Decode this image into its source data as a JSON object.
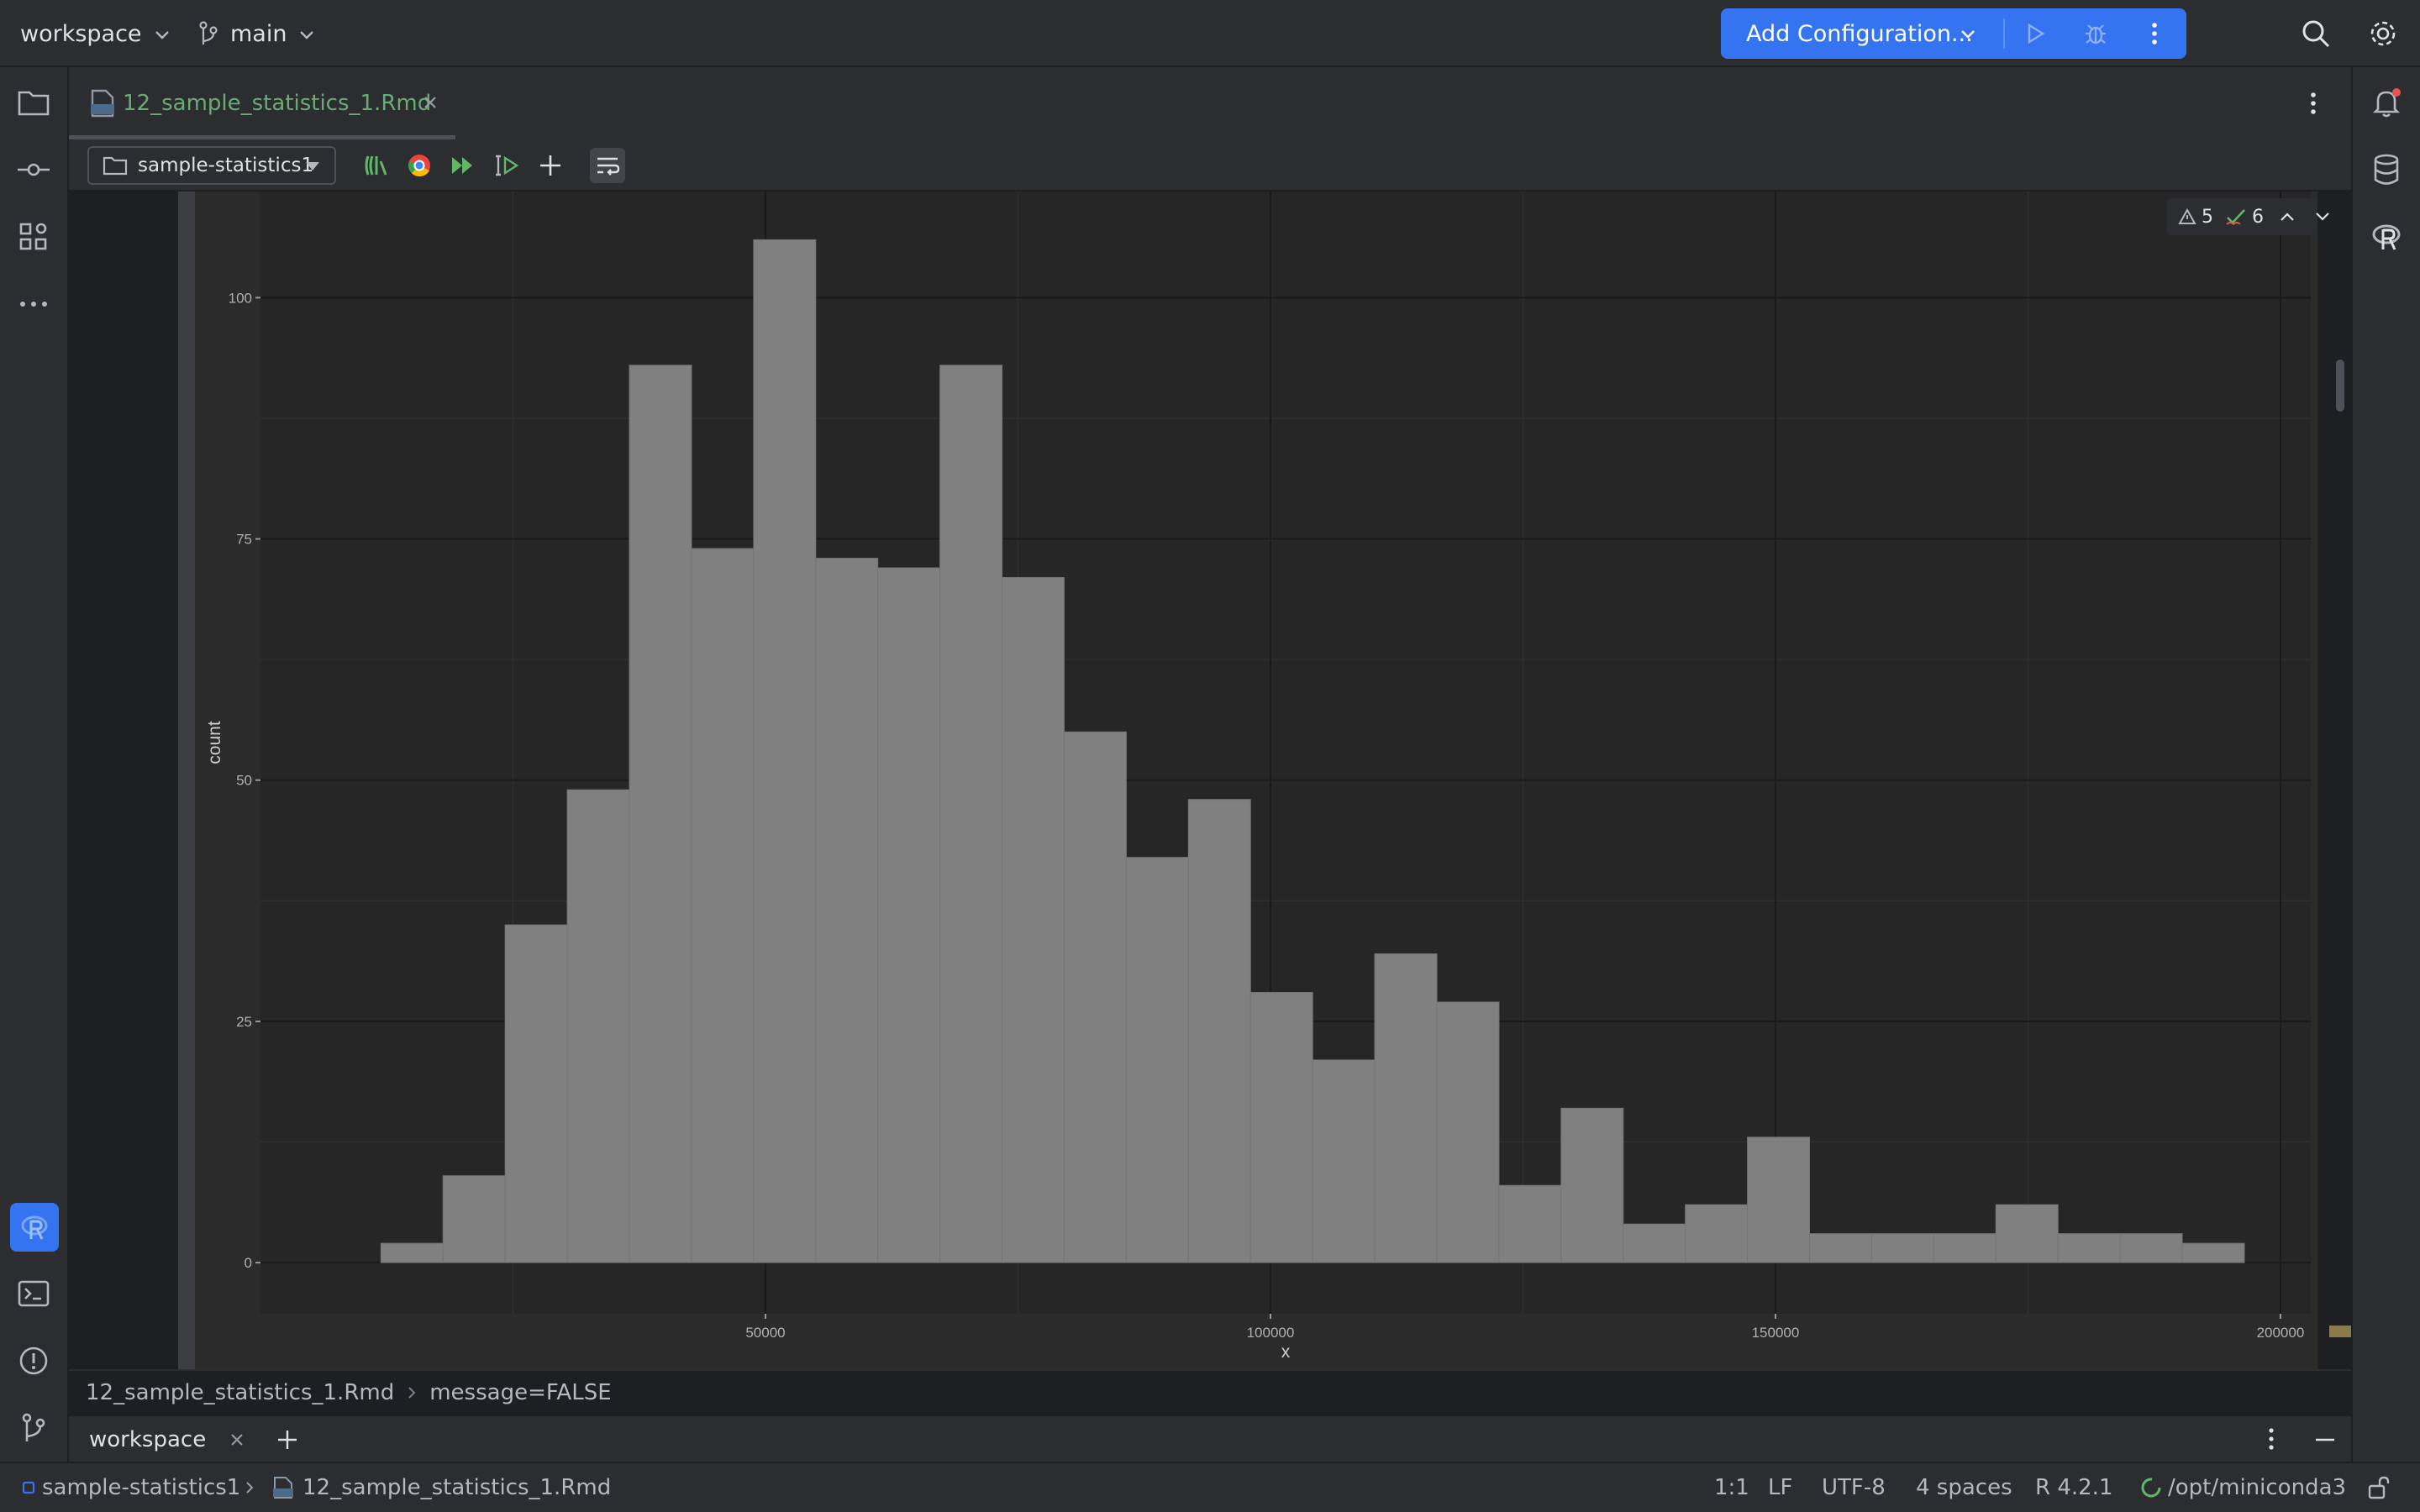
{
  "titlebar": {
    "project_name": "workspace",
    "branch_name": "main",
    "run_config_label": "Add Configuration..."
  },
  "editor_tabs": [
    {
      "label": "12_sample_statistics_1.Rmd",
      "active": true
    }
  ],
  "editor_toolbar": {
    "chunk_selector": "sample-statistics1"
  },
  "inspection": {
    "warnings": "5",
    "weak_warnings": "6"
  },
  "breadcrumb": {
    "file": "12_sample_statistics_1.Rmd",
    "chunk_option": "message=FALSE"
  },
  "terminal": {
    "tab_label": "workspace"
  },
  "statusbar": {
    "project": "sample-statistics1",
    "file": "12_sample_statistics_1.Rmd",
    "position": "1:1",
    "line_separator": "LF",
    "encoding": "UTF-8",
    "indent": "4 spaces",
    "r_version": "R 4.2.1",
    "interpreter": "/opt/miniconda3"
  },
  "colors": {
    "accent": "#3574f0",
    "tab_active_text": "#6aab73",
    "chart_bar": "#808080",
    "chart_panel": "#2b2b2b"
  },
  "chart_data": {
    "type": "bar",
    "xlabel": "x",
    "ylabel": "count",
    "bin_width": 6150,
    "bin_centers": [
      15000,
      21150,
      27300,
      33450,
      39600,
      45750,
      51900,
      58050,
      64200,
      70350,
      76500,
      82650,
      88800,
      94950,
      101100,
      107250,
      113400,
      119550,
      125700,
      131850,
      138000,
      144150,
      150300,
      156450,
      162600,
      168750,
      174900,
      181050,
      187200,
      193350
    ],
    "values": [
      2,
      9,
      35,
      49,
      93,
      74,
      106,
      73,
      72,
      93,
      71,
      55,
      42,
      48,
      28,
      21,
      32,
      27,
      8,
      16,
      4,
      6,
      13,
      3,
      3,
      3,
      6,
      3,
      3,
      2
    ],
    "xlim": [
      0,
      203000
    ],
    "ylim": [
      -5.3,
      111
    ],
    "x_ticks": [
      50000,
      100000,
      150000,
      200000
    ],
    "y_ticks": [
      0,
      25,
      50,
      75,
      100
    ],
    "grid": true
  }
}
